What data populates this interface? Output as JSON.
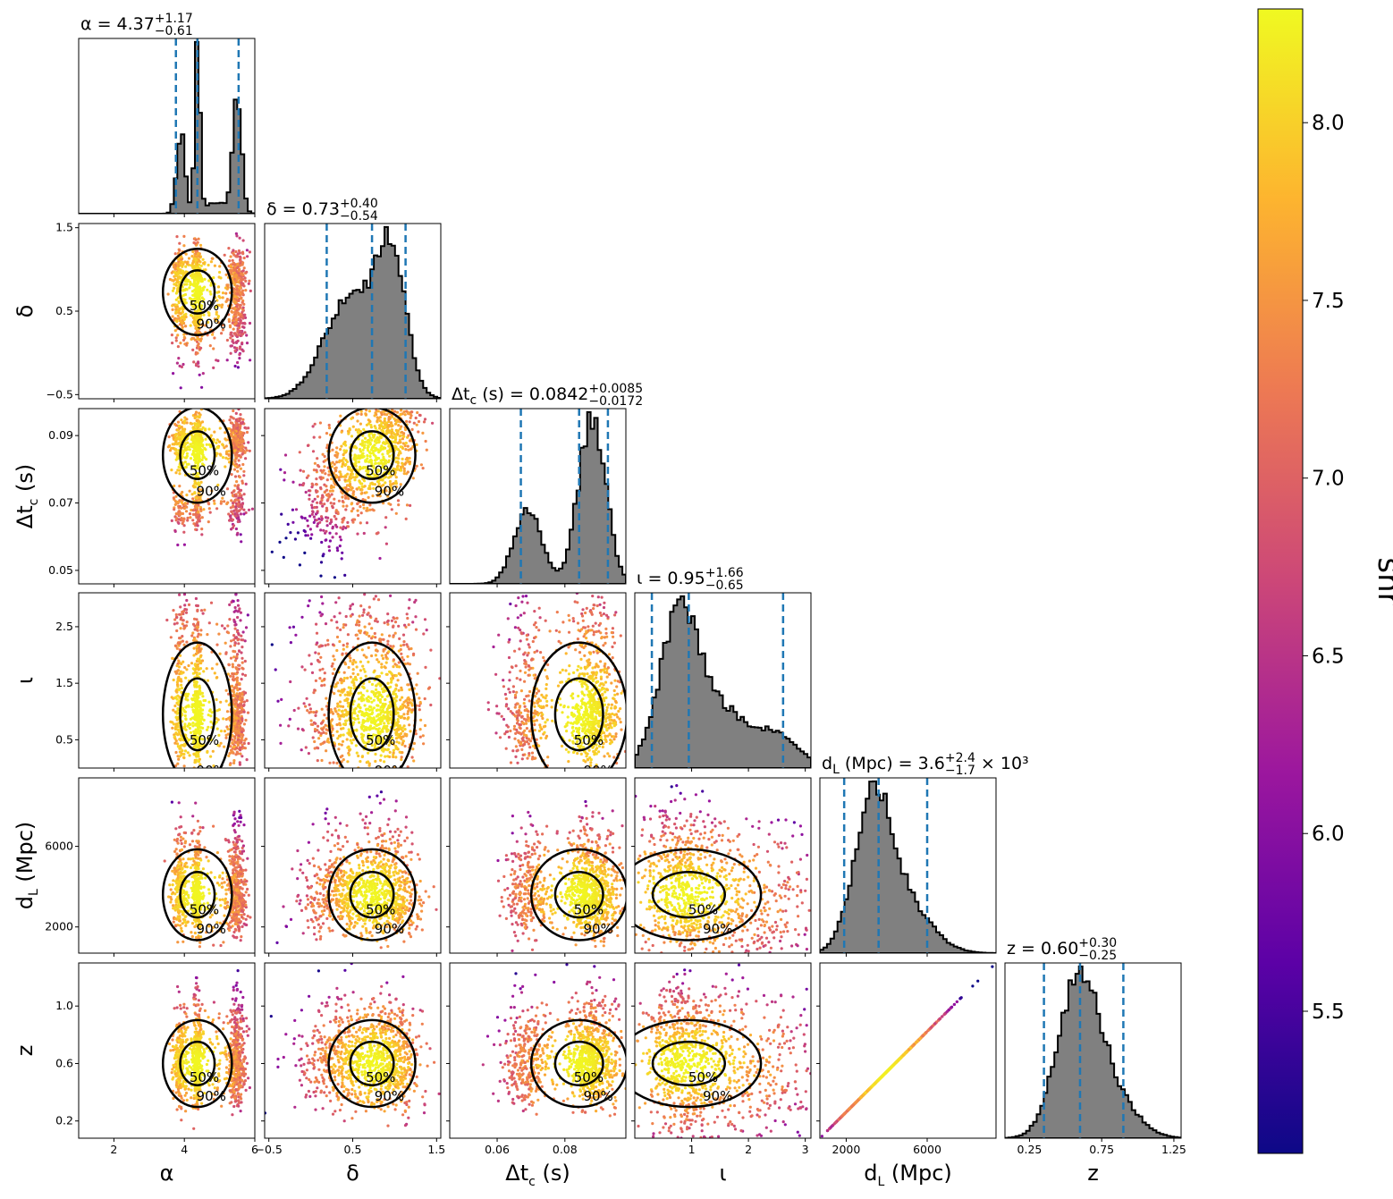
{
  "chart_data": {
    "type": "scatter",
    "variant": "corner-plot",
    "parameters": [
      {
        "key": "alpha",
        "label_parts": {
          "main": "α",
          "sub": ""
        },
        "range": [
          1,
          6
        ],
        "ticks": [
          {
            "v": 2,
            "t": "2"
          },
          {
            "v": 4,
            "t": "4"
          },
          {
            "v": 6,
            "t": "6"
          }
        ],
        "median": 4.37,
        "lo": 3.76,
        "hi": 5.54,
        "title": {
          "prefix": "α = 4.37",
          "sup": "+1.17",
          "sub": "−0.61",
          "suffix": ""
        },
        "hist_modes": [
          {
            "mu": 3.9,
            "s": 0.12,
            "w": 0.45
          },
          {
            "mu": 4.37,
            "s": 0.07,
            "w": 1.0
          },
          {
            "mu": 5.5,
            "s": 0.12,
            "w": 0.65
          },
          {
            "mu": 4.9,
            "s": 0.4,
            "w": 0.06
          }
        ]
      },
      {
        "key": "delta",
        "label_parts": {
          "main": "δ",
          "sub": ""
        },
        "range": [
          -0.55,
          1.55
        ],
        "ticks": [
          {
            "v": -0.5,
            "t": "−0.5"
          },
          {
            "v": 0.5,
            "t": "0.5"
          },
          {
            "v": 1.5,
            "t": "1.5"
          }
        ],
        "median": 0.73,
        "lo": 0.19,
        "hi": 1.13,
        "title": {
          "prefix": "δ = 0.73",
          "sup": "+0.40",
          "sub": "−0.54",
          "suffix": ""
        },
        "hist_modes": [
          {
            "mu": 0.45,
            "s": 0.3,
            "w": 0.65
          },
          {
            "mu": 0.95,
            "s": 0.18,
            "w": 0.9
          }
        ]
      },
      {
        "key": "dtc",
        "label_parts": {
          "main": "Δt",
          "sub": "c",
          "unit": " (s)"
        },
        "range": [
          0.046,
          0.098
        ],
        "ticks": [
          {
            "v": 0.05,
            "t": "0.05"
          },
          {
            "v": 0.07,
            "t": "0.07"
          },
          {
            "v": 0.09,
            "t": "0.09"
          }
        ],
        "xticks": [
          {
            "v": 0.06,
            "t": "0.06"
          },
          {
            "v": 0.08,
            "t": "0.08"
          }
        ],
        "median": 0.0842,
        "lo": 0.067,
        "hi": 0.0927,
        "title": {
          "prefix": "Δt",
          "prefix_sub": "c",
          "prefix_tail": " (s) = 0.0842",
          "sup": "+0.0085",
          "sub": "−0.0172",
          "suffix": ""
        },
        "hist_modes": [
          {
            "mu": 0.069,
            "s": 0.004,
            "w": 0.45
          },
          {
            "mu": 0.088,
            "s": 0.004,
            "w": 1.0
          }
        ]
      },
      {
        "key": "iota",
        "label_parts": {
          "main": "ι",
          "sub": ""
        },
        "range": [
          0,
          3.1
        ],
        "ticks": [
          {
            "v": 0.5,
            "t": "0.5"
          },
          {
            "v": 1.5,
            "t": "1.5"
          },
          {
            "v": 2.5,
            "t": "2.5"
          }
        ],
        "xticks": [
          {
            "v": 1,
            "t": "1"
          },
          {
            "v": 2,
            "t": "2"
          },
          {
            "v": 3,
            "t": "3"
          }
        ],
        "median": 0.95,
        "lo": 0.3,
        "hi": 2.61,
        "title": {
          "prefix": "ι = 0.95",
          "sup": "+1.66",
          "sub": "−0.65",
          "suffix": ""
        },
        "hist_modes": [
          {
            "mu": 0.8,
            "s": 0.35,
            "w": 1.0
          },
          {
            "mu": 1.6,
            "s": 0.35,
            "w": 0.3
          },
          {
            "mu": 2.45,
            "s": 0.4,
            "w": 0.22
          }
        ]
      },
      {
        "key": "dl",
        "label_parts": {
          "main": "d",
          "sub": "L",
          "unit": " (Mpc)"
        },
        "range": [
          700,
          9400
        ],
        "ticks": [
          {
            "v": 2000,
            "t": "2000"
          },
          {
            "v": 6000,
            "t": "6000"
          }
        ],
        "median": 3600,
        "lo": 1900,
        "hi": 6000,
        "title": {
          "prefix": "d",
          "prefix_sub": "L",
          "prefix_tail": " (Mpc) = 3.6",
          "sup": "+2.4",
          "sub": "−1.7",
          "suffix": " × 10³"
        },
        "hist_modes": [
          {
            "mu": 3300,
            "s": 900,
            "w": 1.0
          },
          {
            "mu": 4800,
            "s": 1300,
            "w": 0.35
          }
        ]
      },
      {
        "key": "z",
        "label_parts": {
          "main": "z",
          "sub": ""
        },
        "range": [
          0.08,
          1.3
        ],
        "ticks": [
          {
            "v": 0.2,
            "t": "0.2"
          },
          {
            "v": 0.6,
            "t": "0.6"
          },
          {
            "v": 1.0,
            "t": "1.0"
          }
        ],
        "xticks": [
          {
            "v": 0.25,
            "t": "0.25"
          },
          {
            "v": 0.75,
            "t": "0.75"
          },
          {
            "v": 1.25,
            "t": "1.25"
          }
        ],
        "median": 0.6,
        "lo": 0.35,
        "hi": 0.9,
        "title": {
          "prefix": "z = 0.60",
          "sup": "+0.30",
          "sub": "−0.25",
          "suffix": ""
        },
        "hist_modes": [
          {
            "mu": 0.58,
            "s": 0.14,
            "w": 1.0
          },
          {
            "mu": 0.8,
            "s": 0.17,
            "w": 0.3
          }
        ]
      }
    ],
    "contour_levels": [
      "50%",
      "90%"
    ],
    "colorbar": {
      "label": "snr",
      "range": [
        5.1,
        8.32
      ],
      "ticks": [
        {
          "v": 5.5,
          "t": "5.5"
        },
        {
          "v": 6.0,
          "t": "6.0"
        },
        {
          "v": 6.5,
          "t": "6.5"
        },
        {
          "v": 7.0,
          "t": "7.0"
        },
        {
          "v": 7.5,
          "t": "7.5"
        },
        {
          "v": 8.0,
          "t": "8.0"
        }
      ],
      "colormap": [
        "#0d0887",
        "#5c01a6",
        "#9c179e",
        "#cc4778",
        "#ed7953",
        "#fdb42f",
        "#f0f921"
      ]
    },
    "colors": {
      "hist_fill": "#808080",
      "hist_edge": "#000000",
      "quantile_line": "#1f77b4",
      "contour": "#000000"
    }
  }
}
